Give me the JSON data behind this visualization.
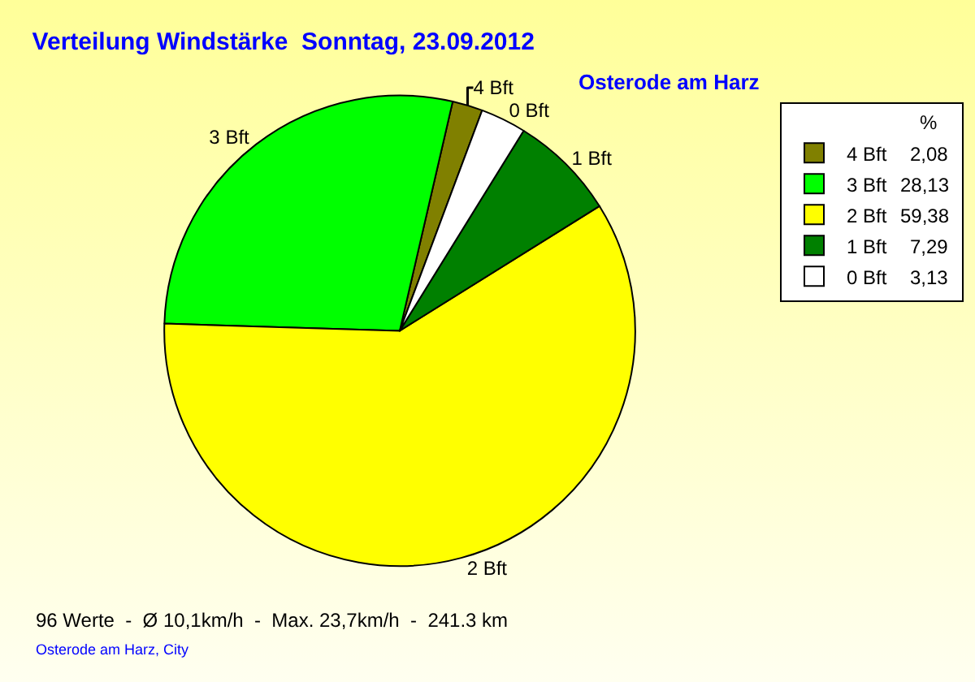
{
  "chart_data": {
    "type": "pie",
    "title": "Verteilung Windstärke  Sonntag, 23.09.2012",
    "subtitle": "Osterode am Harz",
    "categories": [
      "4 Bft",
      "3 Bft",
      "2 Bft",
      "1 Bft",
      "0 Bft"
    ],
    "values": [
      2.08,
      28.13,
      59.38,
      7.29,
      3.13
    ],
    "value_labels": [
      "2,08",
      "28,13",
      "59,38",
      "7,29",
      "3,13"
    ],
    "colors": [
      "#808000",
      "#00ff00",
      "#ffff00",
      "#008000",
      "#ffffff"
    ],
    "legend": "top right",
    "legend_title": "%",
    "annotations": [
      "96 Werte  -  Ø 10,1km/h  -  Max. 23,7km/h  -  241.3 km",
      "Osterode am Harz, City"
    ]
  }
}
